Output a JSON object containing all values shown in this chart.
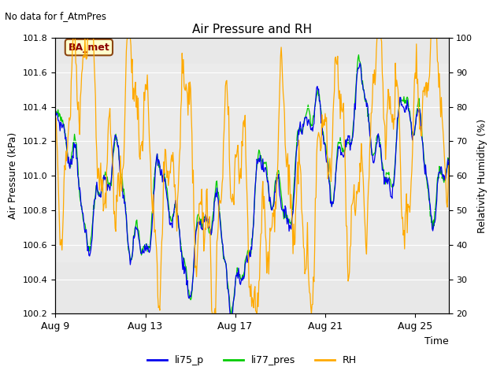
{
  "title": "Air Pressure and RH",
  "subtitle": "No data for f_AtmPres",
  "ylabel_left": "Air Pressure (kPa)",
  "ylabel_right": "Relativity Humidity (%)",
  "xlabel": "Time",
  "annotation_box": "BA_met",
  "ylim_left": [
    100.2,
    101.8
  ],
  "ylim_right": [
    20,
    100
  ],
  "yticks_left": [
    100.2,
    100.4,
    100.6,
    100.8,
    101.0,
    101.2,
    101.4,
    101.6,
    101.8
  ],
  "yticks_right": [
    20,
    30,
    40,
    50,
    60,
    70,
    80,
    90,
    100
  ],
  "xtick_labels": [
    "Aug 9",
    "Aug 13",
    "Aug 17",
    "Aug 21",
    "Aug 25"
  ],
  "xtick_positions": [
    0,
    4,
    8,
    12,
    16
  ],
  "xlim": [
    0,
    17.5
  ],
  "color_li75": "#0000ee",
  "color_li77": "#00cc00",
  "color_rh": "#ffaa00",
  "legend_labels": [
    "li75_p",
    "li77_pres",
    "RH"
  ],
  "outer_bg": "#e8e8e8",
  "inner_bg": "#d8d8d8",
  "n_points": 600,
  "seed": 7
}
